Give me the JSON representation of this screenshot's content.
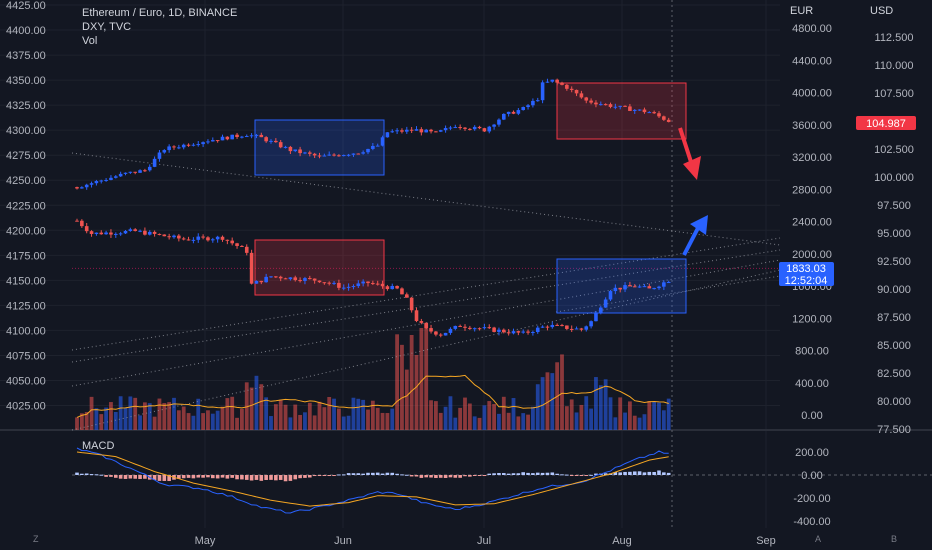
{
  "legend": {
    "title": "Ethereum / Euro, 1D, BINANCE",
    "overlay": "DXY, TVC",
    "volume_label": "Vol"
  },
  "macd_label": "MACD",
  "axis_headers": {
    "eur": "EUR",
    "usd": "USD"
  },
  "price_tag": {
    "value": "1833.03",
    "countdown": "12:52:04",
    "color": "#2962ff"
  },
  "usd_tag": {
    "value": "104.987",
    "color": "#f23645"
  },
  "corner_buttons": {
    "left": "Z",
    "auto": "A",
    "log": "B"
  },
  "colors": {
    "background": "#131722",
    "up": "#2962ff",
    "down": "#ef5350",
    "volume_ma": "#f5a623",
    "macd_line": "#2962ff",
    "signal_line": "#f5a623"
  },
  "chart_data": {
    "type": "candlestick",
    "left_axis": {
      "ticks": [
        4425.0,
        4400.0,
        4375.0,
        4350.0,
        4325.0,
        4300.0,
        4275.0,
        4250.0,
        4225.0,
        4200.0,
        4175.0,
        4150.0,
        4125.0,
        4100.0,
        4075.0,
        4050.0,
        4025.0
      ]
    },
    "eur_axis": {
      "label": "EUR",
      "ticks": [
        4800.0,
        4400.0,
        4000.0,
        3600.0,
        3200.0,
        2800.0,
        2400.0,
        2000.0,
        1600.0,
        1200.0,
        800.0,
        400.0,
        0.0
      ]
    },
    "usd_axis": {
      "label": "USD",
      "ticks": [
        112.5,
        110.0,
        107.5,
        105.0,
        102.5,
        100.0,
        97.5,
        95.0,
        92.5,
        90.0,
        87.5,
        85.0,
        82.5,
        80.0,
        77.5
      ]
    },
    "macd_axis": {
      "ticks": [
        200.0,
        0.0,
        -200.0,
        -400.0
      ]
    },
    "x_ticks": [
      "May",
      "Jun",
      "Jul",
      "Aug",
      "Sep"
    ],
    "series": [
      {
        "name": "Ethereum / Euro",
        "last_value": 1833.03
      },
      {
        "name": "DXY",
        "last_value": 104.987
      },
      {
        "name": "Vol"
      },
      {
        "name": "MACD"
      }
    ],
    "annotations": [
      {
        "type": "rectangle",
        "color": "blue",
        "around": "DXY mid-May"
      },
      {
        "type": "rectangle",
        "color": "red",
        "around": "DXY early August"
      },
      {
        "type": "rectangle",
        "color": "red",
        "around": "ETH late May - mid June"
      },
      {
        "type": "rectangle",
        "color": "blue",
        "around": "ETH late July - August"
      },
      {
        "type": "arrow",
        "color": "red",
        "direction": "down"
      },
      {
        "type": "arrow",
        "color": "blue",
        "direction": "up"
      }
    ],
    "grid": true
  }
}
